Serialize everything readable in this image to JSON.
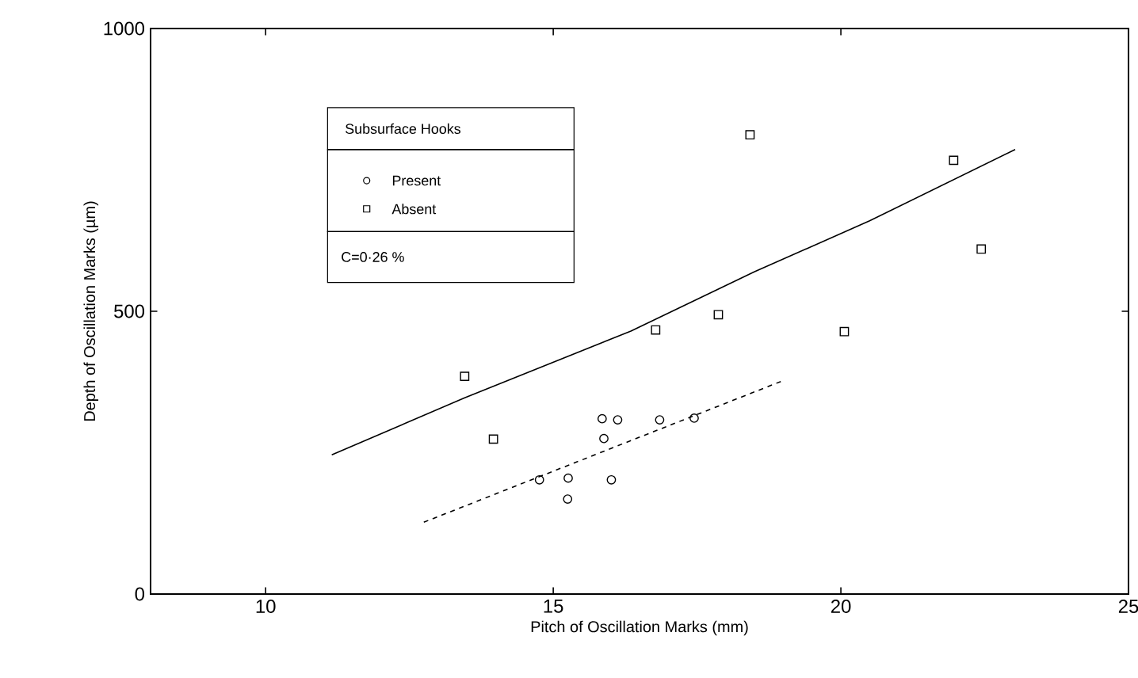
{
  "chart_data": {
    "type": "scatter",
    "xlabel": "Pitch of Oscillation Marks   (mm)",
    "ylabel": "Depth of Oscillation Marks (µm)",
    "legend_title": "Subsurface Hooks",
    "annotations": [
      "C=0·26 %"
    ],
    "legend": "top left",
    "xlim": [
      8,
      25
    ],
    "ylim": [
      0,
      1000
    ],
    "xticks": [
      10,
      15,
      20,
      25
    ],
    "yticks": [
      0,
      500,
      1000
    ],
    "series": [
      {
        "name": "Present",
        "type": "scatter",
        "marker": "circle",
        "color": "#000000",
        "x": [
          14.76,
          15.26,
          15.25,
          16.01,
          15.85,
          16.12,
          15.88,
          16.85,
          17.45
        ],
        "values": [
          202,
          205,
          168,
          202,
          310,
          308,
          275,
          308,
          311
        ]
      },
      {
        "name": "Absent",
        "type": "scatter",
        "marker": "square",
        "color": "#000000",
        "x": [
          13.46,
          13.96,
          16.78,
          17.87,
          18.42,
          20.06,
          21.96,
          22.44
        ],
        "values": [
          385,
          274,
          467,
          494,
          812,
          464,
          767,
          610
        ]
      },
      {
        "type": "line",
        "marker": "none",
        "line_style": "solid",
        "color": "#000000",
        "x": [
          11.15,
          13.46,
          16.35,
          18.5,
          20.5,
          23.03
        ],
        "values": [
          246,
          347,
          465,
          570,
          660,
          786
        ]
      },
      {
        "type": "line",
        "marker": "none",
        "line_style": "dashed",
        "color": "#000000",
        "x": [
          12.75,
          19.01
        ],
        "values": [
          127,
          378
        ]
      }
    ]
  }
}
